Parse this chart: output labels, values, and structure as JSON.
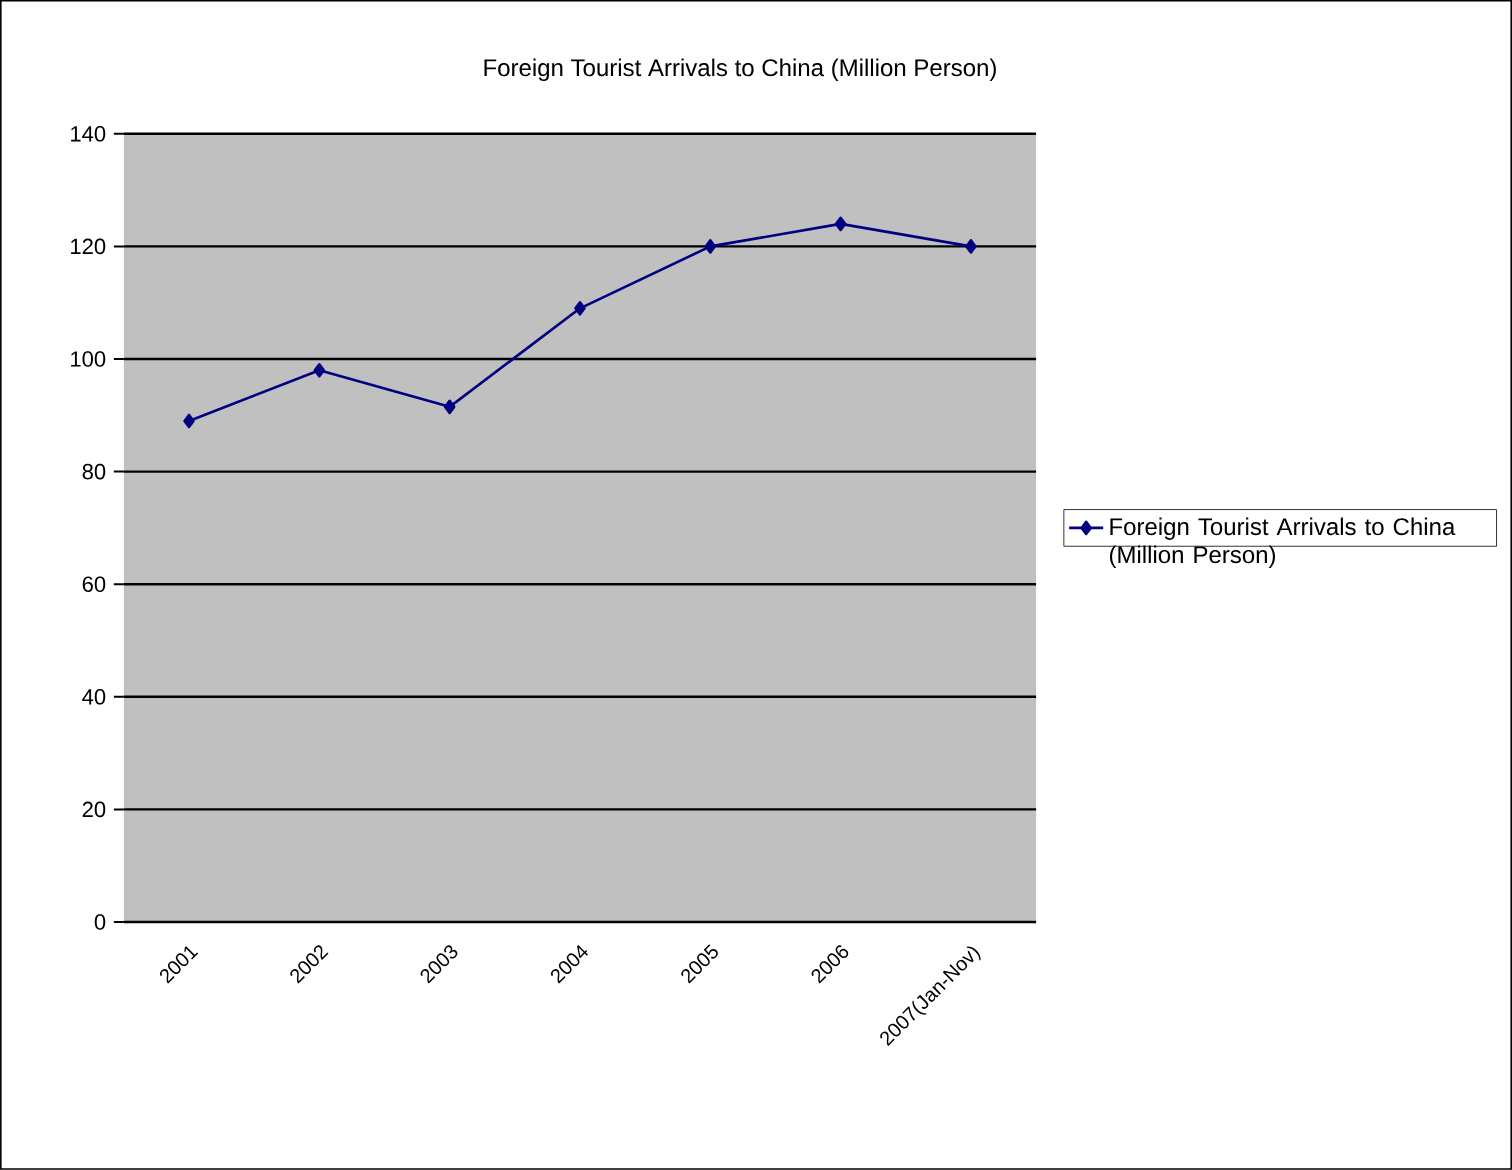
{
  "chart_data": {
    "type": "line",
    "title": "Foreign Tourist Arrivals to China  (Million Person)",
    "categories": [
      "2001",
      "2002",
      "2003",
      "2004",
      "2005",
      "2006",
      "2007(Jan-Nov)"
    ],
    "series": [
      {
        "name": "Foreign Tourist Arrivals to China  (Million Person)",
        "color": "#000080",
        "values": [
          89,
          98,
          91.5,
          109,
          120,
          124,
          120
        ]
      }
    ],
    "ylim": [
      0,
      140
    ],
    "yticks": [
      0,
      20,
      40,
      60,
      80,
      100,
      120,
      140
    ],
    "grid": "y",
    "legend": "right",
    "marker": "diamond"
  }
}
